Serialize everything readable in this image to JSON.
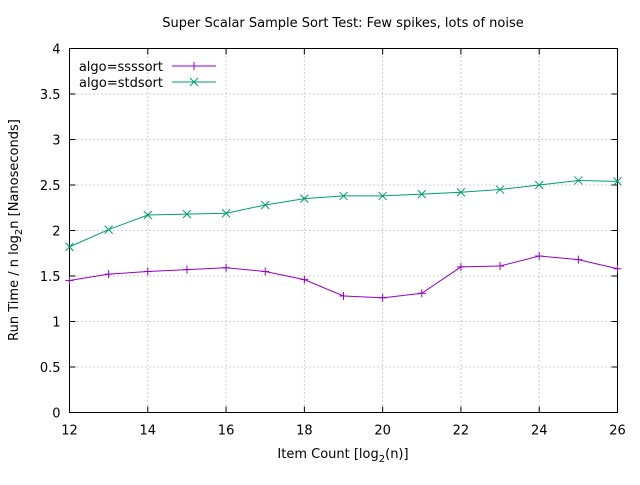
{
  "chart_data": {
    "type": "line",
    "title": "Super Scalar Sample Sort Test: Few spikes, lots of noise",
    "xlabel": {
      "prefix": "Item Count [log",
      "sub": "2",
      "suffix": "(n)]"
    },
    "ylabel": {
      "prefix": "Run Time / n log",
      "sub": "2",
      "suffix": "n [Nanoseconds]"
    },
    "xlim": [
      12,
      26
    ],
    "ylim": [
      0,
      4
    ],
    "xticks": [
      "12",
      "14",
      "16",
      "18",
      "20",
      "22",
      "24",
      "26"
    ],
    "yticks": [
      "0",
      "0.5",
      "1",
      "1.5",
      "2",
      "2.5",
      "3",
      "3.5",
      "4"
    ],
    "grid": true,
    "legend_position": "top-left",
    "x": [
      12,
      13,
      14,
      15,
      16,
      17,
      18,
      19,
      20,
      21,
      22,
      23,
      24,
      25,
      26
    ],
    "series": [
      {
        "name": "algo=ssssort",
        "color": "#9400d3",
        "marker": "plus",
        "values": [
          1.45,
          1.52,
          1.55,
          1.57,
          1.59,
          1.55,
          1.46,
          1.28,
          1.26,
          1.31,
          1.6,
          1.61,
          1.72,
          1.68,
          1.58
        ]
      },
      {
        "name": "algo=stdsort",
        "color": "#009e73",
        "marker": "cross",
        "values": [
          1.82,
          2.01,
          2.17,
          2.18,
          2.19,
          2.28,
          2.35,
          2.38,
          2.38,
          2.4,
          2.42,
          2.45,
          2.5,
          2.55,
          2.54
        ]
      }
    ]
  }
}
